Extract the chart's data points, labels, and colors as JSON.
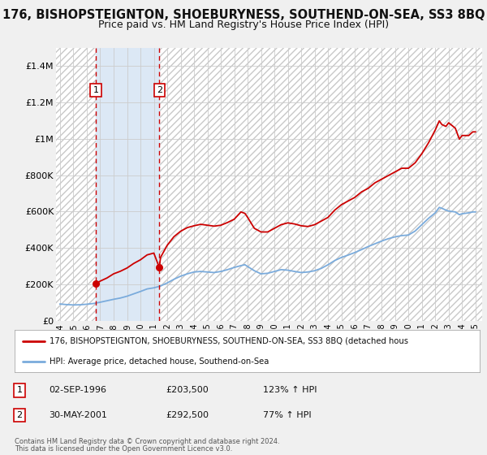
{
  "title": "176, BISHOPSTEIGNTON, SHOEBURYNESS, SOUTHEND-ON-SEA, SS3 8BQ",
  "subtitle": "Price paid vs. HM Land Registry's House Price Index (HPI)",
  "title_fontsize": 10.5,
  "subtitle_fontsize": 9,
  "xlim": [
    1993.7,
    2025.5
  ],
  "ylim": [
    0,
    1500000
  ],
  "yticks": [
    0,
    200000,
    400000,
    600000,
    800000,
    1000000,
    1200000,
    1400000
  ],
  "ytick_labels": [
    "£0",
    "£200K",
    "£400K",
    "£600K",
    "£800K",
    "£1M",
    "£1.2M",
    "£1.4M"
  ],
  "xticks": [
    1994,
    1995,
    1996,
    1997,
    1998,
    1999,
    2000,
    2001,
    2002,
    2003,
    2004,
    2005,
    2006,
    2007,
    2008,
    2009,
    2010,
    2011,
    2012,
    2013,
    2014,
    2015,
    2016,
    2017,
    2018,
    2019,
    2020,
    2021,
    2022,
    2023,
    2024,
    2025
  ],
  "background_color": "#f0f0f0",
  "plot_background": "#ffffff",
  "grid_color": "#cccccc",
  "red_line_color": "#cc0000",
  "blue_line_color": "#7aabdc",
  "shaded_region_color": "#dce8f5",
  "hatch_region_color": "#dddddd",
  "shaded_x1": 1996.67,
  "shaded_x2": 2001.41,
  "vline1_x": 1996.67,
  "vline2_x": 2001.41,
  "vline_color": "#cc0000",
  "point1_x": 1996.67,
  "point1_y": 203500,
  "point2_x": 2001.41,
  "point2_y": 292500,
  "point_color": "#cc0000",
  "legend_line1": "176, BISHOPSTEIGNTON, SHOEBURYNESS, SOUTHEND-ON-SEA, SS3 8BQ (detached hous",
  "legend_line2": "HPI: Average price, detached house, Southend-on-Sea",
  "annotation1_label": "1",
  "annotation1_date": "02-SEP-1996",
  "annotation1_price": "£203,500",
  "annotation1_hpi": "123% ↑ HPI",
  "annotation2_label": "2",
  "annotation2_date": "30-MAY-2001",
  "annotation2_price": "£292,500",
  "annotation2_hpi": "77% ↑ HPI",
  "footer1": "Contains HM Land Registry data © Crown copyright and database right 2024.",
  "footer2": "This data is licensed under the Open Government Licence v3.0.",
  "red_hpi_data": [
    [
      1996.67,
      203500
    ],
    [
      1997.0,
      218000
    ],
    [
      1997.5,
      235000
    ],
    [
      1998.0,
      258000
    ],
    [
      1998.5,
      272000
    ],
    [
      1999.0,
      290000
    ],
    [
      1999.5,
      315000
    ],
    [
      2000.0,
      335000
    ],
    [
      2000.5,
      362000
    ],
    [
      2001.0,
      372000
    ],
    [
      2001.41,
      292500
    ],
    [
      2001.5,
      348000
    ],
    [
      2002.0,
      415000
    ],
    [
      2002.5,
      462000
    ],
    [
      2003.0,
      492000
    ],
    [
      2003.5,
      512000
    ],
    [
      2004.0,
      522000
    ],
    [
      2004.5,
      530000
    ],
    [
      2005.0,
      525000
    ],
    [
      2005.5,
      520000
    ],
    [
      2006.0,
      525000
    ],
    [
      2006.5,
      540000
    ],
    [
      2007.0,
      558000
    ],
    [
      2007.5,
      598000
    ],
    [
      2007.8,
      590000
    ],
    [
      2008.0,
      568000
    ],
    [
      2008.5,
      508000
    ],
    [
      2009.0,
      488000
    ],
    [
      2009.5,
      488000
    ],
    [
      2010.0,
      508000
    ],
    [
      2010.5,
      528000
    ],
    [
      2011.0,
      538000
    ],
    [
      2011.5,
      532000
    ],
    [
      2012.0,
      522000
    ],
    [
      2012.5,
      518000
    ],
    [
      2013.0,
      528000
    ],
    [
      2013.5,
      548000
    ],
    [
      2014.0,
      568000
    ],
    [
      2014.5,
      608000
    ],
    [
      2015.0,
      638000
    ],
    [
      2015.5,
      658000
    ],
    [
      2016.0,
      678000
    ],
    [
      2016.5,
      708000
    ],
    [
      2017.0,
      728000
    ],
    [
      2017.5,
      758000
    ],
    [
      2018.0,
      778000
    ],
    [
      2018.5,
      798000
    ],
    [
      2019.0,
      818000
    ],
    [
      2019.5,
      838000
    ],
    [
      2020.0,
      838000
    ],
    [
      2020.5,
      868000
    ],
    [
      2021.0,
      918000
    ],
    [
      2021.5,
      978000
    ],
    [
      2022.0,
      1048000
    ],
    [
      2022.3,
      1098000
    ],
    [
      2022.5,
      1078000
    ],
    [
      2022.8,
      1068000
    ],
    [
      2023.0,
      1088000
    ],
    [
      2023.3,
      1070000
    ],
    [
      2023.5,
      1058000
    ],
    [
      2023.8,
      998000
    ],
    [
      2024.0,
      1018000
    ],
    [
      2024.5,
      1018000
    ],
    [
      2024.8,
      1038000
    ],
    [
      2025.0,
      1038000
    ]
  ],
  "blue_hpi_data": [
    [
      1994.0,
      92000
    ],
    [
      1994.5,
      89000
    ],
    [
      1995.0,
      87000
    ],
    [
      1995.5,
      88000
    ],
    [
      1996.0,
      91000
    ],
    [
      1996.5,
      95000
    ],
    [
      1997.0,
      102000
    ],
    [
      1997.5,
      110000
    ],
    [
      1998.0,
      118000
    ],
    [
      1998.5,
      125000
    ],
    [
      1999.0,
      135000
    ],
    [
      1999.5,
      148000
    ],
    [
      2000.0,
      161000
    ],
    [
      2000.5,
      175000
    ],
    [
      2001.0,
      181000
    ],
    [
      2001.5,
      191000
    ],
    [
      2002.0,
      208000
    ],
    [
      2002.5,
      228000
    ],
    [
      2003.0,
      245000
    ],
    [
      2003.5,
      258000
    ],
    [
      2004.0,
      268000
    ],
    [
      2004.5,
      271000
    ],
    [
      2005.0,
      268000
    ],
    [
      2005.5,
      265000
    ],
    [
      2006.0,
      271000
    ],
    [
      2006.5,
      281000
    ],
    [
      2007.0,
      293000
    ],
    [
      2007.5,
      303000
    ],
    [
      2007.8,
      308000
    ],
    [
      2008.0,
      298000
    ],
    [
      2008.5,
      275000
    ],
    [
      2009.0,
      258000
    ],
    [
      2009.5,
      261000
    ],
    [
      2010.0,
      271000
    ],
    [
      2010.5,
      281000
    ],
    [
      2011.0,
      278000
    ],
    [
      2011.5,
      271000
    ],
    [
      2012.0,
      265000
    ],
    [
      2012.5,
      268000
    ],
    [
      2013.0,
      275000
    ],
    [
      2013.5,
      288000
    ],
    [
      2014.0,
      308000
    ],
    [
      2014.5,
      331000
    ],
    [
      2015.0,
      348000
    ],
    [
      2015.5,
      361000
    ],
    [
      2016.0,
      375000
    ],
    [
      2016.5,
      391000
    ],
    [
      2017.0,
      408000
    ],
    [
      2017.5,
      423000
    ],
    [
      2018.0,
      438000
    ],
    [
      2018.5,
      451000
    ],
    [
      2019.0,
      461000
    ],
    [
      2019.5,
      468000
    ],
    [
      2020.0,
      471000
    ],
    [
      2020.5,
      493000
    ],
    [
      2021.0,
      528000
    ],
    [
      2021.5,
      563000
    ],
    [
      2022.0,
      593000
    ],
    [
      2022.3,
      623000
    ],
    [
      2022.5,
      618000
    ],
    [
      2022.8,
      608000
    ],
    [
      2023.0,
      603000
    ],
    [
      2023.5,
      598000
    ],
    [
      2023.8,
      583000
    ],
    [
      2024.0,
      588000
    ],
    [
      2024.5,
      593000
    ],
    [
      2024.8,
      598000
    ],
    [
      2025.0,
      598000
    ]
  ]
}
